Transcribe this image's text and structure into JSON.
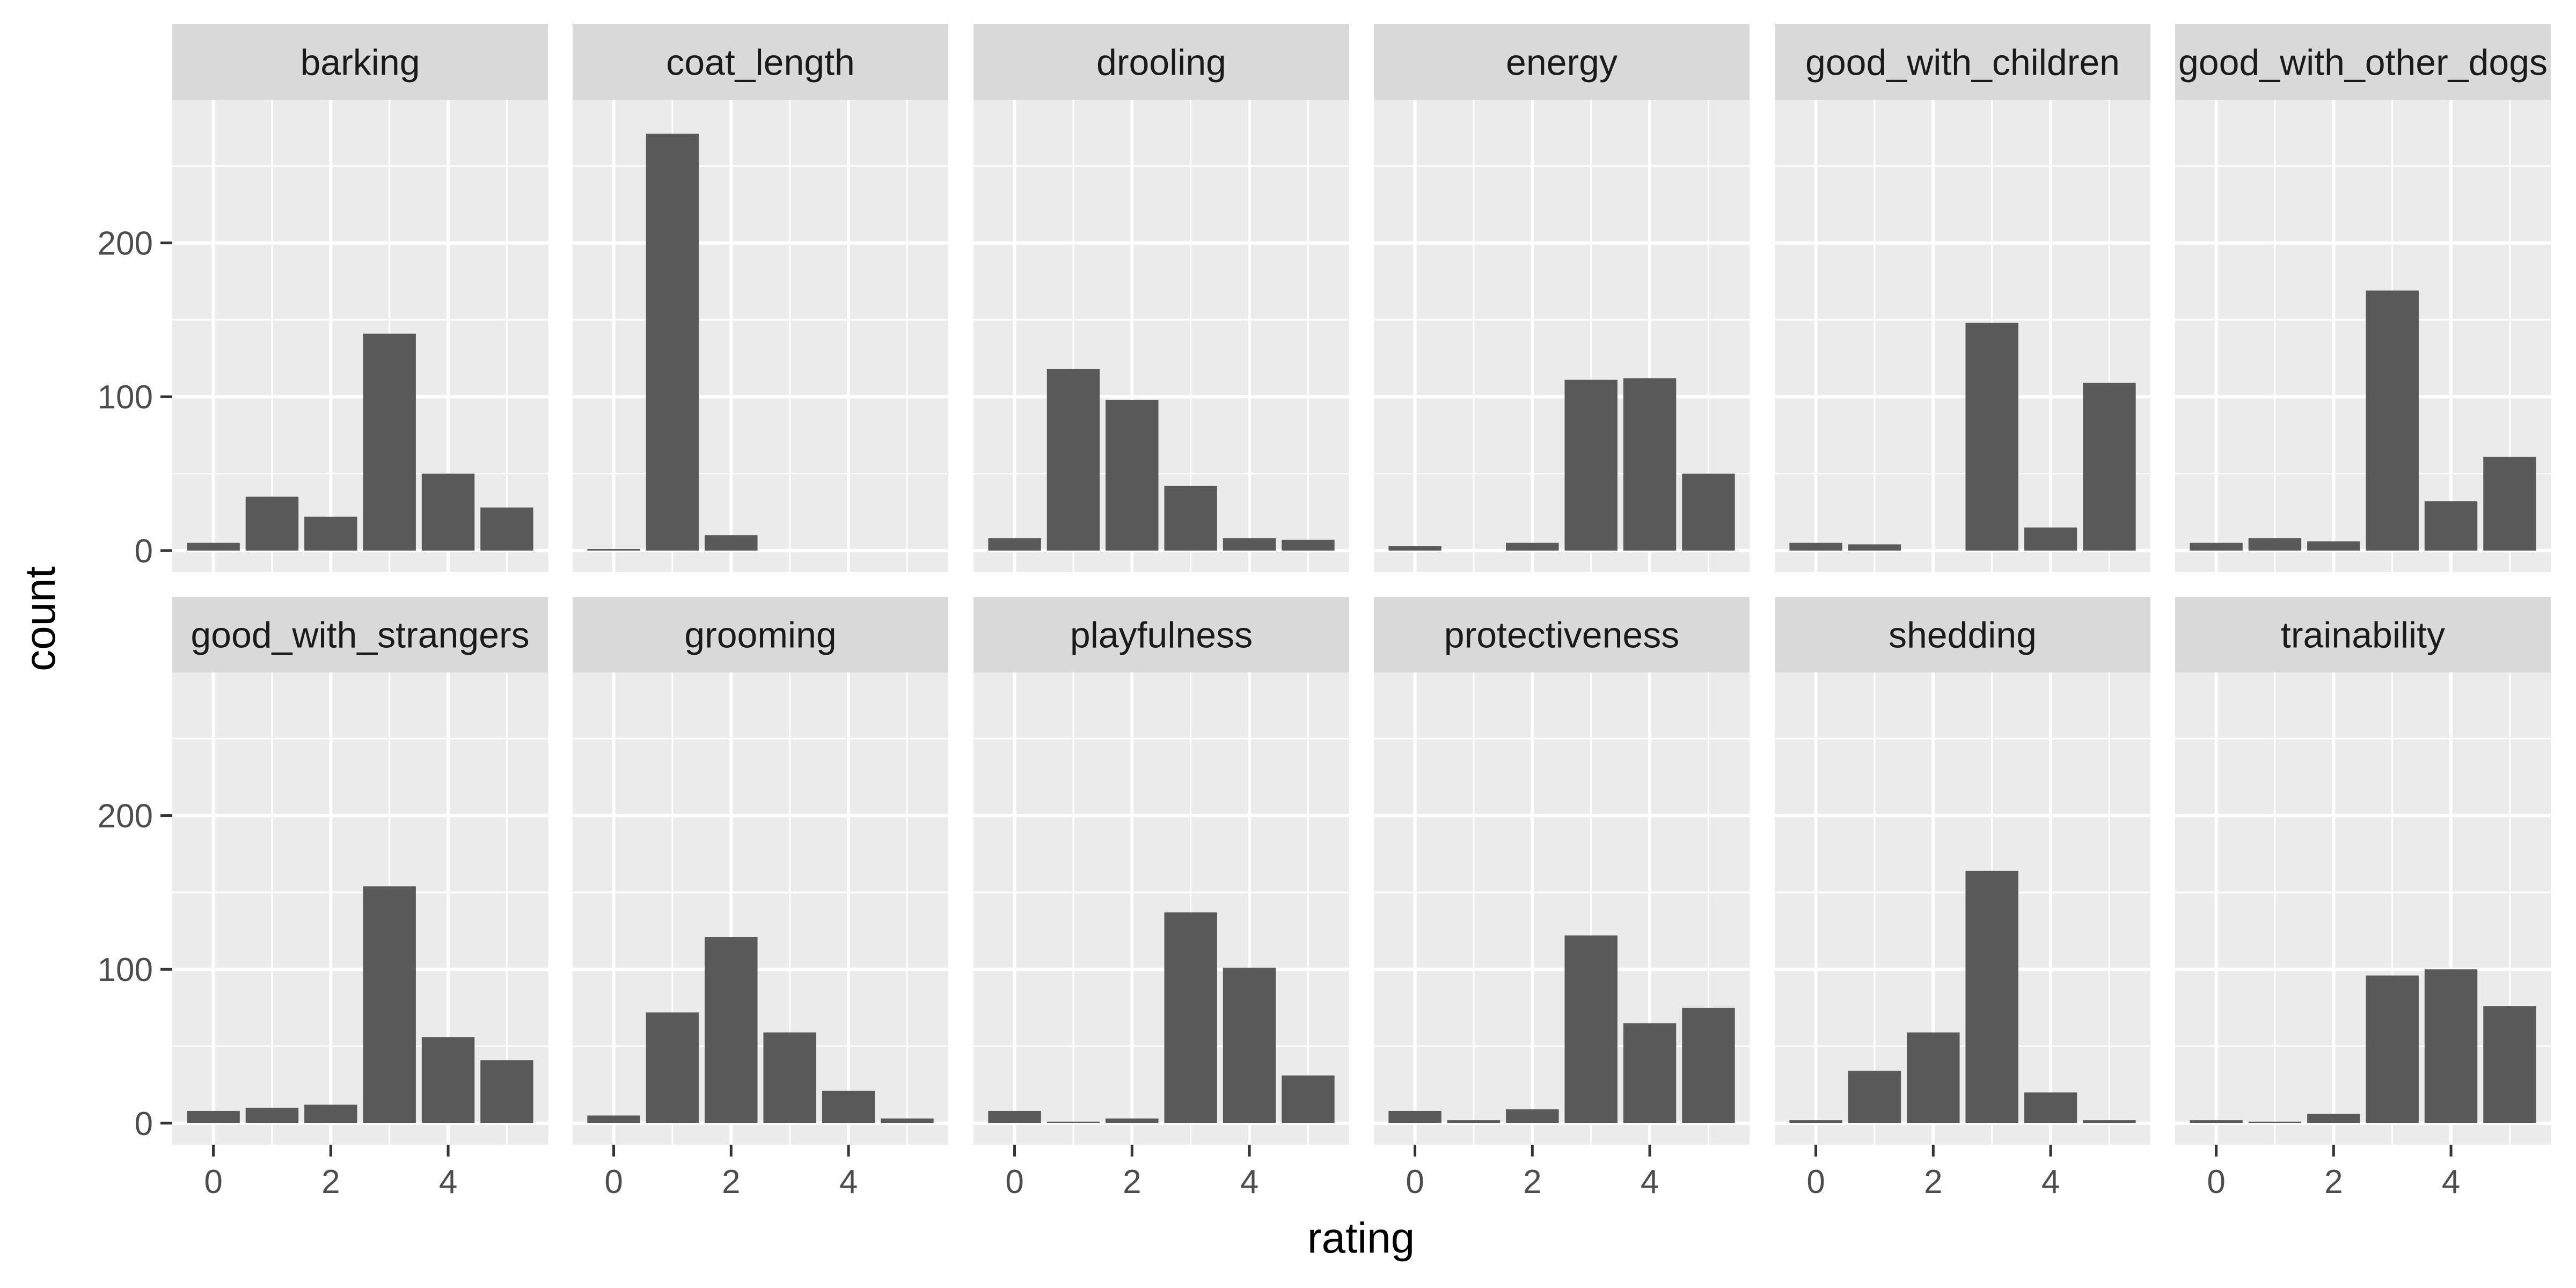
{
  "chart_data": {
    "type": "bar",
    "xlabel": "rating",
    "ylabel": "count",
    "x_categories": [
      0,
      1,
      2,
      3,
      4,
      5
    ],
    "x_ticks": [
      0,
      2,
      4
    ],
    "y_ticks": [
      0,
      100,
      200
    ],
    "xlim": [
      -0.7,
      5.7
    ],
    "ylim": [
      -14,
      293
    ],
    "grid": true,
    "legend": "none",
    "colors": {
      "bar": "#595959",
      "panel": "#ebebeb",
      "strip": "#d9d9d9",
      "grid": "#ffffff"
    },
    "facets": [
      {
        "name": "barking",
        "values": [
          5,
          35,
          22,
          141,
          50,
          28
        ]
      },
      {
        "name": "coat_length",
        "values": [
          1,
          271,
          10,
          0,
          0,
          0
        ]
      },
      {
        "name": "drooling",
        "values": [
          8,
          118,
          98,
          42,
          8,
          7
        ]
      },
      {
        "name": "energy",
        "values": [
          3,
          0,
          5,
          111,
          112,
          50
        ]
      },
      {
        "name": "good_with_children",
        "values": [
          5,
          4,
          0,
          148,
          15,
          109
        ]
      },
      {
        "name": "good_with_other_dogs",
        "values": [
          5,
          8,
          6,
          169,
          32,
          61
        ]
      },
      {
        "name": "good_with_strangers",
        "values": [
          8,
          10,
          12,
          154,
          56,
          41
        ]
      },
      {
        "name": "grooming",
        "values": [
          5,
          72,
          121,
          59,
          21,
          3
        ]
      },
      {
        "name": "playfulness",
        "values": [
          8,
          1,
          3,
          137,
          101,
          31
        ]
      },
      {
        "name": "protectiveness",
        "values": [
          8,
          2,
          9,
          122,
          65,
          75
        ]
      },
      {
        "name": "shedding",
        "values": [
          2,
          34,
          59,
          164,
          20,
          2
        ]
      },
      {
        "name": "trainability",
        "values": [
          2,
          1,
          6,
          96,
          100,
          76
        ]
      }
    ]
  }
}
